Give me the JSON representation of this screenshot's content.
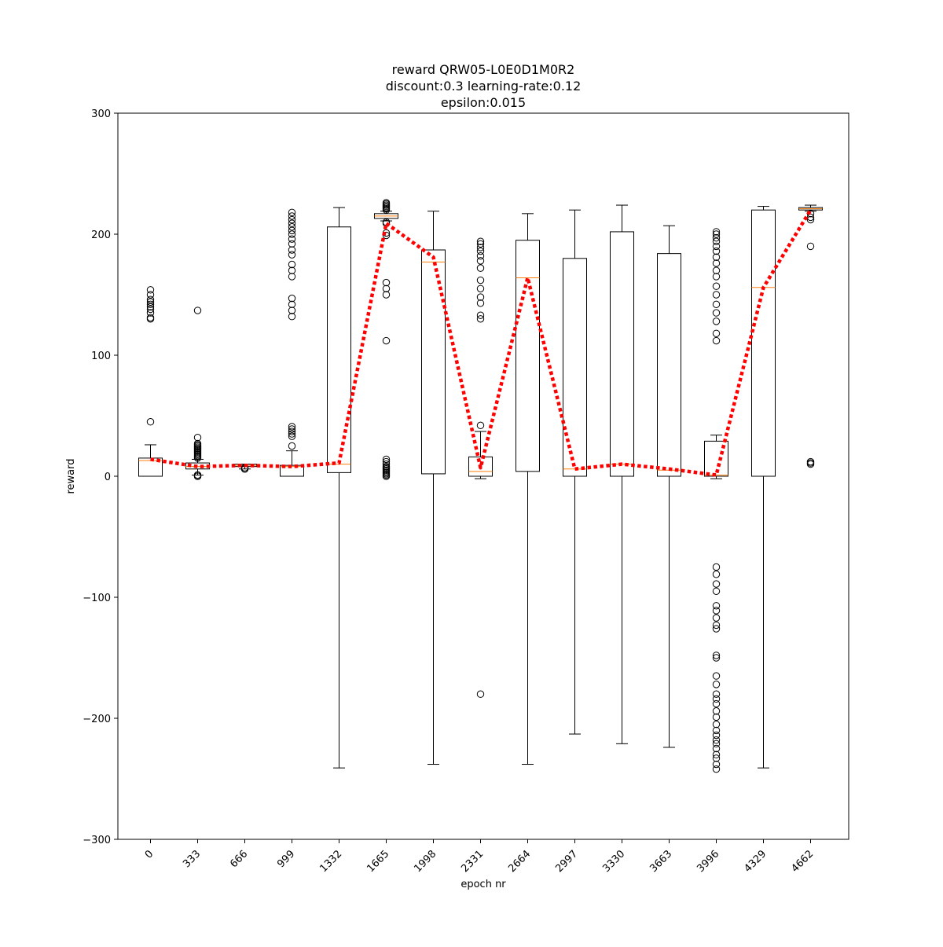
{
  "chart_data": {
    "type": "box",
    "title_lines": [
      "reward QRW05-L0E0D1M0R2",
      "discount:0.3 learning-rate:0.12",
      "epsilon:0.015"
    ],
    "xlabel": "epoch nr",
    "ylabel": "reward",
    "ylim": [
      -300,
      300
    ],
    "yticks": [
      -300,
      -200,
      -100,
      0,
      100,
      200,
      300
    ],
    "ytick_labels": [
      "−300",
      "−200",
      "−100",
      "0",
      "100",
      "200",
      "300"
    ],
    "categories": [
      "0",
      "333",
      "666",
      "999",
      "1332",
      "1665",
      "1998",
      "2331",
      "2664",
      "2997",
      "3330",
      "3663",
      "3996",
      "4329",
      "4662"
    ],
    "boxes": [
      {
        "q1": 0,
        "median": 13,
        "q3": 15,
        "whislo": 0,
        "whishi": 26,
        "fliers": [
          45,
          130,
          131,
          135,
          138,
          140,
          142,
          144,
          146,
          150,
          154
        ]
      },
      {
        "q1": 6,
        "median": 8,
        "q3": 11,
        "whislo": 1,
        "whishi": 14,
        "fliers": [
          0,
          0,
          1,
          1,
          15,
          16,
          17,
          18,
          19,
          20,
          21,
          22,
          23,
          24,
          25,
          26,
          27,
          32,
          137
        ]
      },
      {
        "q1": 8,
        "median": 9,
        "q3": 10,
        "whislo": 6,
        "whishi": 10,
        "fliers": [
          6,
          6,
          7,
          7
        ]
      },
      {
        "q1": 0,
        "median": 8,
        "q3": 9,
        "whislo": 0,
        "whishi": 21,
        "fliers": [
          25,
          33,
          35,
          37,
          39,
          41,
          132,
          137,
          142,
          147,
          165,
          170,
          175,
          183,
          187,
          192,
          196,
          200,
          203,
          206,
          209,
          212,
          215,
          218
        ]
      },
      {
        "q1": 3,
        "median": 10,
        "q3": 206,
        "whislo": -241,
        "whishi": 222,
        "fliers": []
      },
      {
        "q1": 213,
        "median": 215,
        "q3": 217,
        "whislo": 211,
        "whishi": 219,
        "fliers": [
          0,
          1,
          2,
          3,
          4,
          5,
          6,
          7,
          8,
          10,
          12,
          14,
          112,
          150,
          155,
          160,
          199,
          201,
          209,
          210,
          220,
          221,
          222,
          223,
          224,
          225,
          226
        ]
      },
      {
        "q1": 2,
        "median": 177,
        "q3": 187,
        "whislo": -238,
        "whishi": 219,
        "fliers": []
      },
      {
        "q1": 0,
        "median": 4,
        "q3": 16,
        "whislo": -2,
        "whishi": 37,
        "fliers": [
          -180,
          42,
          130,
          133,
          143,
          148,
          155,
          162,
          172,
          178,
          182,
          186,
          189,
          192,
          194
        ]
      },
      {
        "q1": 4,
        "median": 164,
        "q3": 195,
        "whislo": -238,
        "whishi": 217,
        "fliers": []
      },
      {
        "q1": 0,
        "median": 6,
        "q3": 180,
        "whislo": -213,
        "whishi": 220,
        "fliers": []
      },
      {
        "q1": 0,
        "median": 10,
        "q3": 202,
        "whislo": -221,
        "whishi": 224,
        "fliers": []
      },
      {
        "q1": 0,
        "median": 5,
        "q3": 184,
        "whislo": -224,
        "whishi": 207,
        "fliers": []
      },
      {
        "q1": 0,
        "median": 1,
        "q3": 29,
        "whislo": -2,
        "whishi": 34,
        "fliers": [
          -242,
          -238,
          -233,
          -230,
          -225,
          -221,
          -218,
          -214,
          -210,
          -205,
          -199,
          -194,
          -188,
          -184,
          -180,
          -172,
          -165,
          -150,
          -148,
          -126,
          -123,
          -117,
          -111,
          -107,
          -95,
          -89,
          -81,
          -75,
          112,
          118,
          128,
          135,
          142,
          150,
          157,
          165,
          170,
          176,
          181,
          186,
          190,
          194,
          197,
          200,
          202
        ]
      },
      {
        "q1": 0,
        "median": 156,
        "q3": 220,
        "whislo": -241,
        "whishi": 223,
        "fliers": []
      },
      {
        "q1": 220,
        "median": 221,
        "q3": 222,
        "whislo": 219,
        "whishi": 224,
        "fliers": [
          10,
          11,
          12,
          190,
          212,
          214,
          217
        ]
      }
    ],
    "mean_line": {
      "values": [
        14,
        8,
        9,
        8,
        11,
        209,
        181,
        7,
        164,
        6,
        10,
        6,
        1,
        156,
        220
      ],
      "color": "#ff0000",
      "style": "dotted"
    },
    "colors": {
      "box": "#000000",
      "median": "#ff7f0e",
      "flier": "#000000",
      "mean_line": "#ff0000"
    },
    "grid": false
  }
}
